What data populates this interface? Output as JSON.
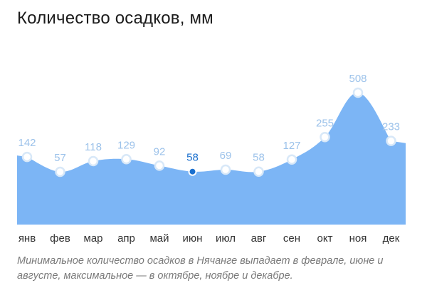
{
  "title": "Количество осадков, мм",
  "caption": "Минимальное количество осадков в Нячанге выпадает в феврале, июне и августе, максимальное — в октябре, ноябре и декабре.",
  "colors": {
    "area": "#7cb5f5",
    "label": "#9cc2ea",
    "highlight": "#1a6fce",
    "marker_stroke": "#d8e8f8",
    "tick_label": "#333333"
  },
  "chart_data": {
    "type": "area",
    "categories": [
      "янв",
      "фев",
      "мар",
      "апр",
      "май",
      "июн",
      "июл",
      "авг",
      "сен",
      "окт",
      "ноя",
      "дек"
    ],
    "values": [
      142,
      57,
      118,
      129,
      92,
      58,
      69,
      58,
      127,
      255,
      508,
      233
    ],
    "highlight_index": 5,
    "title": "Количество осадков, мм",
    "xlabel": "",
    "ylabel": "",
    "grid": false,
    "legend": "none"
  }
}
